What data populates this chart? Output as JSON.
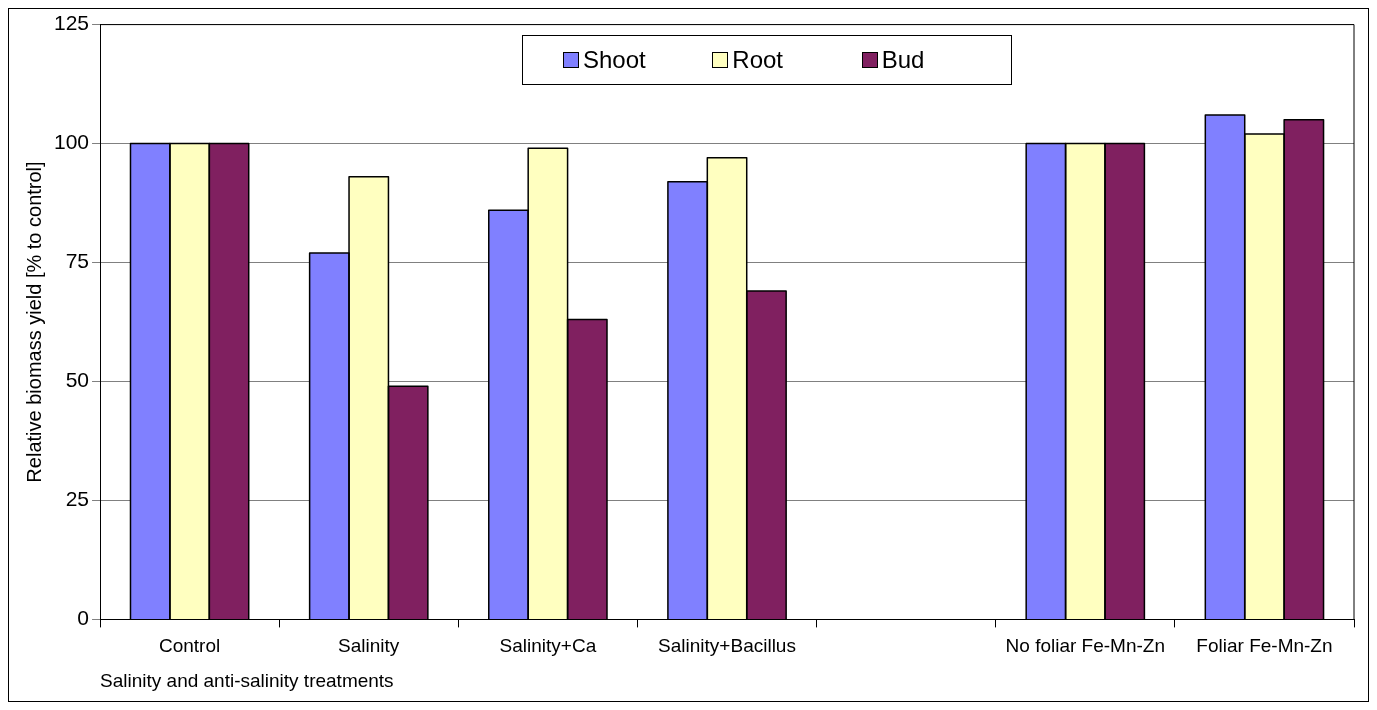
{
  "chart_data": {
    "type": "bar",
    "xlabel": "Salinity and anti-salinity treatments",
    "ylabel": "Relative biomass yield [% to control]",
    "categories": [
      "Control",
      "Salinity",
      "Salinity+Ca",
      "Salinity+Bacillus",
      null,
      "No foliar Fe-Mn-Zn",
      "Foliar Fe-Mn-Zn"
    ],
    "series": [
      {
        "name": "Shoot",
        "color": "#8080ff",
        "values": [
          100,
          77,
          86,
          92,
          null,
          100,
          106
        ]
      },
      {
        "name": "Root",
        "color": "#ffffc0",
        "values": [
          100,
          93,
          99,
          97,
          null,
          100,
          102
        ]
      },
      {
        "name": "Bud",
        "color": "#802060",
        "values": [
          100,
          49,
          63,
          69,
          null,
          100,
          105
        ]
      }
    ],
    "ylim": [
      0,
      125
    ],
    "yticks": [
      0,
      25,
      50,
      75,
      100,
      125
    ],
    "grid": "y",
    "legend": "top"
  }
}
